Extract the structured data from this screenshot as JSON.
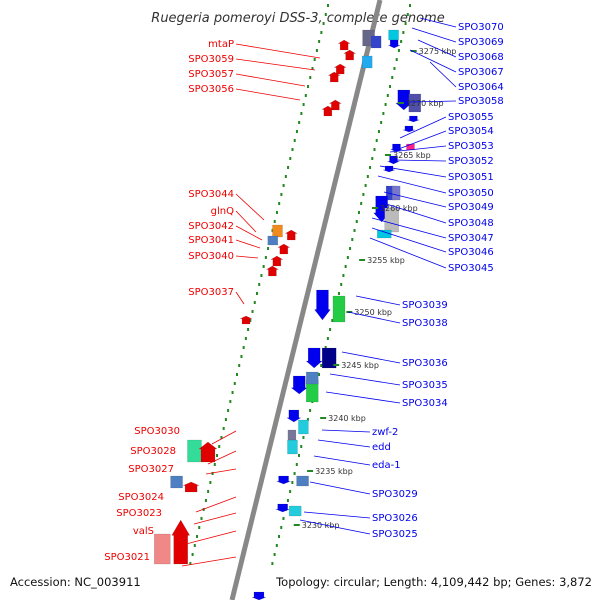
{
  "title": "Ruegeria pomeroyi DSS-3, complete genome",
  "footer": {
    "accession": "Accession: NC_003911",
    "summary": "Topology: circular; Length: 4,109,442 bp; Genes: 3,872"
  },
  "colors": {
    "forward": "#ee0000",
    "reverse": "#0000ee",
    "axis": "#888888",
    "track_dots": "#228822"
  },
  "kbp_ticks": [
    "3230 kbp",
    "3235 kbp",
    "3240 kbp",
    "3245 kbp",
    "3250 kbp",
    "3255 kbp",
    "3260 kbp",
    "3265 kbp",
    "3270 kbp",
    "3275 kbp"
  ],
  "left_labels": [
    "mtaP",
    "SPO3059",
    "SPO3057",
    "SPO3056",
    "SPO3044",
    "glnQ",
    "SPO3042",
    "SPO3041",
    "SPO3040",
    "SPO3037",
    "SPO3030",
    "SPO3028",
    "SPO3027",
    "SPO3024",
    "SPO3023",
    "valS",
    "SPO3021"
  ],
  "right_labels": [
    "SPO3070",
    "SPO3069",
    "SPO3068",
    "SPO3067",
    "SPO3064",
    "SPO3058",
    "SPO3055",
    "SPO3054",
    "SPO3053",
    "SPO3052",
    "SPO3051",
    "SPO3050",
    "SPO3049",
    "SPO3048",
    "SPO3047",
    "SPO3046",
    "SPO3045",
    "SPO3039",
    "SPO3038",
    "SPO3036",
    "SPO3035",
    "SPO3034",
    "zwf-2",
    "edd",
    "eda-1",
    "SPO3029",
    "SPO3026",
    "SPO3025"
  ]
}
